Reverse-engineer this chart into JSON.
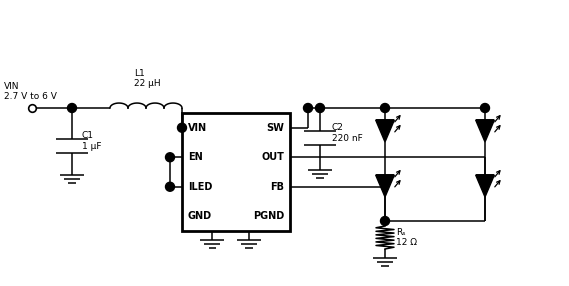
{
  "bg_color": "#ffffff",
  "line_color": "#000000",
  "text_color": "#000000",
  "figsize": [
    5.69,
    2.86
  ],
  "dpi": 100,
  "ic_labels_left": [
    "VIN",
    "EN",
    "ILED",
    "GND"
  ],
  "ic_labels_right": [
    "SW",
    "OUT",
    "FB",
    "PGND"
  ],
  "vin_label": "VIN\n2.7 V to 6 V",
  "c1_label": "C1\n1 μF",
  "l1_label": "L1\n22 μH",
  "c2_label": "C2\n220 nF",
  "rs_label": "Rₛ\n12 Ω"
}
